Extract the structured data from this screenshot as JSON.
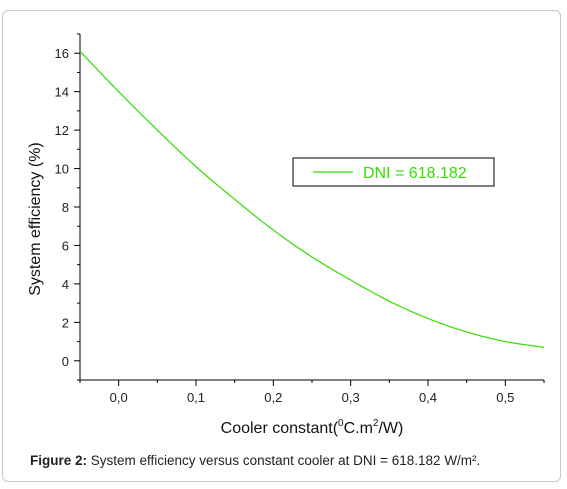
{
  "chart_data": {
    "type": "line",
    "xlabel_main": "Cooler constant(",
    "xlabel_sup1": "0",
    "xlabel_mid": "C.m",
    "xlabel_sup2": "2",
    "xlabel_end": "/W)",
    "ylabel": "System efficiency (%)",
    "xlim": [
      -0.05,
      0.55
    ],
    "ylim": [
      -1,
      17
    ],
    "x_ticks": [
      0.0,
      0.1,
      0.2,
      0.3,
      0.4,
      0.5
    ],
    "x_tick_labels": [
      "0,0",
      "0,1",
      "0,2",
      "0,3",
      "0,4",
      "0,5"
    ],
    "y_ticks": [
      0,
      2,
      4,
      6,
      8,
      10,
      12,
      14,
      16
    ],
    "y_tick_labels": [
      "0",
      "2",
      "4",
      "6",
      "8",
      "10",
      "12",
      "14",
      "16"
    ],
    "grid": false,
    "legend_position": "center-right",
    "series": [
      {
        "name": "DNI = 618.182",
        "color": "#33dd00",
        "x": [
          -0.05,
          0.0,
          0.05,
          0.1,
          0.15,
          0.2,
          0.25,
          0.3,
          0.35,
          0.4,
          0.45,
          0.5,
          0.55
        ],
        "y": [
          16.1,
          14.0,
          12.0,
          10.1,
          8.4,
          6.8,
          5.4,
          4.2,
          3.1,
          2.2,
          1.5,
          1.0,
          0.7
        ]
      }
    ]
  },
  "caption": {
    "label": "Figure 2:",
    "text": " System efficiency versus constant cooler at DNI = 618.182 W/m²."
  }
}
